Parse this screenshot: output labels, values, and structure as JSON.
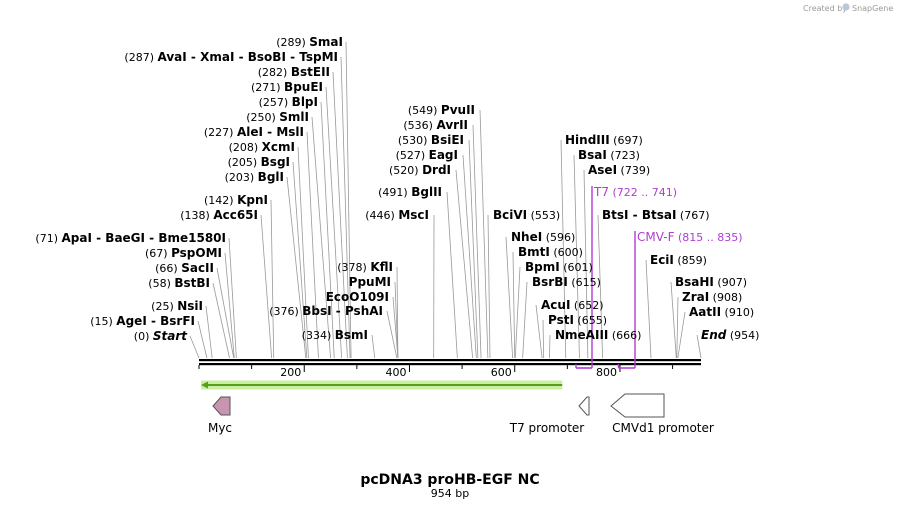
{
  "brand": {
    "created_by": "Created by",
    "app": "SnapGene"
  },
  "map": {
    "name": "pcDNA3 proHB-EGF NC",
    "length_label": "954 bp",
    "length": 954,
    "ruler_ticks": [
      "200",
      "400",
      "600",
      "800"
    ],
    "ruler_values": [
      200,
      400,
      600,
      800
    ]
  },
  "left_labels": [
    {
      "pos": "(289)",
      "names": [
        "SmaI"
      ],
      "sites": [
        289
      ]
    },
    {
      "pos": "(287)",
      "names": [
        "AvaI",
        "XmaI",
        "BsoBI",
        "TspMI"
      ],
      "sites": [
        287
      ]
    },
    {
      "pos": "(282)",
      "names": [
        "BstEII"
      ],
      "sites": [
        282
      ]
    },
    {
      "pos": "(271)",
      "names": [
        "BpuEI"
      ],
      "sites": [
        271
      ]
    },
    {
      "pos": "(257)",
      "names": [
        "BlpI"
      ],
      "sites": [
        257
      ]
    },
    {
      "pos": "(250)",
      "names": [
        "SmlI"
      ],
      "sites": [
        250
      ]
    },
    {
      "pos": "(227)",
      "names": [
        "AleI",
        "MslI"
      ],
      "sites": [
        227
      ]
    },
    {
      "pos": "(208)",
      "names": [
        "XcmI"
      ],
      "sites": [
        208
      ]
    },
    {
      "pos": "(205)",
      "names": [
        "BsgI"
      ],
      "sites": [
        205
      ]
    },
    {
      "pos": "(203)",
      "names": [
        "BglI"
      ],
      "sites": [
        203
      ]
    },
    {
      "pos": "(142)",
      "names": [
        "KpnI"
      ],
      "sites": [
        142
      ]
    },
    {
      "pos": "(138)",
      "names": [
        "Acc65I"
      ],
      "sites": [
        138
      ]
    },
    {
      "pos": "(71)",
      "names": [
        "ApaI",
        "BaeGI",
        "Bme1580I"
      ],
      "sites": [
        71
      ]
    },
    {
      "pos": "(67)",
      "names": [
        "PspOMI"
      ],
      "sites": [
        67
      ]
    },
    {
      "pos": "(66)",
      "names": [
        "SacII"
      ],
      "sites": [
        66
      ]
    },
    {
      "pos": "(58)",
      "names": [
        "BstBI"
      ],
      "sites": [
        58
      ]
    },
    {
      "pos": "(25)",
      "names": [
        "NsiI"
      ],
      "sites": [
        25
      ]
    },
    {
      "pos": "(15)",
      "names": [
        "AgeI",
        "BsrFI"
      ],
      "sites": [
        15
      ]
    },
    {
      "pos": "(0)",
      "names": [
        "Start"
      ],
      "sites": [
        0
      ],
      "italic": true
    }
  ],
  "mid_labels": [
    {
      "pos": "(378)",
      "names": [
        "KflI"
      ],
      "sites": [
        378
      ]
    },
    {
      "pos": "",
      "names": [
        "PpuMI"
      ],
      "sites": [
        378
      ]
    },
    {
      "pos": "",
      "names": [
        "EcoO109I"
      ],
      "sites": [
        378
      ]
    },
    {
      "pos": "(376)",
      "names": [
        "BbsI",
        "PshAI"
      ],
      "sites": [
        376
      ]
    },
    {
      "pos": "(334)",
      "names": [
        "BsmI"
      ],
      "sites": [
        334
      ]
    }
  ],
  "center_labels": [
    {
      "pos": "(549)",
      "names": [
        "PvuII"
      ],
      "sites": [
        549
      ]
    },
    {
      "pos": "(536)",
      "names": [
        "AvrII"
      ],
      "sites": [
        536
      ]
    },
    {
      "pos": "(530)",
      "names": [
        "BsiEI"
      ],
      "sites": [
        530
      ]
    },
    {
      "pos": "(527)",
      "names": [
        "EagI"
      ],
      "sites": [
        527
      ]
    },
    {
      "pos": "(520)",
      "names": [
        "DrdI"
      ],
      "sites": [
        520
      ]
    },
    {
      "pos": "(491)",
      "names": [
        "BglII"
      ],
      "sites": [
        491
      ]
    },
    {
      "pos": "(446)",
      "names": [
        "MscI"
      ],
      "sites": [
        446
      ]
    }
  ],
  "right_labels": [
    {
      "pos": "(553)",
      "names": [
        "BciVI"
      ],
      "sites": [
        553
      ],
      "pos_after": true
    },
    {
      "pos": "(596)",
      "names": [
        "NheI"
      ],
      "sites": [
        596
      ],
      "pos_after": true
    },
    {
      "pos": "(600)",
      "names": [
        "BmtI"
      ],
      "sites": [
        600
      ],
      "pos_after": true
    },
    {
      "pos": "(601)",
      "names": [
        "BpmI"
      ],
      "sites": [
        601
      ],
      "pos_after": true
    },
    {
      "pos": "(615)",
      "names": [
        "BsrBI"
      ],
      "sites": [
        615
      ],
      "pos_after": true
    },
    {
      "pos": "(652)",
      "names": [
        "AcuI"
      ],
      "sites": [
        652
      ],
      "pos_after": true
    },
    {
      "pos": "(655)",
      "names": [
        "PstI"
      ],
      "sites": [
        655
      ],
      "pos_after": true
    },
    {
      "pos": "(666)",
      "names": [
        "NmeAIII"
      ],
      "sites": [
        666
      ],
      "pos_after": true
    }
  ],
  "far_right_labels": [
    {
      "pos": "(697)",
      "names": [
        "HindIII"
      ],
      "sites": [
        697
      ],
      "pos_after": true
    },
    {
      "pos": "(723)",
      "names": [
        "BsaI"
      ],
      "sites": [
        723
      ],
      "pos_after": true
    },
    {
      "pos": "(739)",
      "names": [
        "AseI"
      ],
      "sites": [
        739
      ],
      "pos_after": true
    },
    {
      "pos": "(767)",
      "names": [
        "BtsI",
        "BtsaI"
      ],
      "sites": [
        767
      ],
      "pos_after": true
    },
    {
      "pos": "(859)",
      "names": [
        "EciI"
      ],
      "sites": [
        859
      ],
      "pos_after": true
    },
    {
      "pos": "(907)",
      "names": [
        "BsaHI"
      ],
      "sites": [
        907
      ],
      "pos_after": true
    },
    {
      "pos": "(908)",
      "names": [
        "ZraI"
      ],
      "sites": [
        908
      ],
      "pos_after": true
    },
    {
      "pos": "(910)",
      "names": [
        "AatII"
      ],
      "sites": [
        910
      ],
      "pos_after": true
    },
    {
      "pos": "(954)",
      "names": [
        "End"
      ],
      "sites": [
        954
      ],
      "pos_after": true,
      "italic": true
    }
  ],
  "primers": [
    {
      "name": "T7",
      "range": "(722 .. 741)",
      "start": 722,
      "end": 741,
      "color": "#b03cd0"
    },
    {
      "name": "CMV-F",
      "range": "(815 .. 835)",
      "start": 815,
      "end": 835,
      "color": "#b03cd0"
    }
  ],
  "features": [
    {
      "name": "Myc",
      "start": 0,
      "end": 30,
      "direction": "left",
      "color": "#c994b0"
    },
    {
      "name": "T7 promoter",
      "start": 722,
      "end": 741,
      "direction": "left",
      "color": "#ffffff"
    },
    {
      "name": "CMVd1 promoter",
      "start": 766,
      "end": 954,
      "direction": "left",
      "color": "#ffffff"
    }
  ],
  "orf": {
    "start": 0,
    "end": 696,
    "direction": "left",
    "color": "#5a9e1e",
    "glow": "#c8f0a0"
  }
}
